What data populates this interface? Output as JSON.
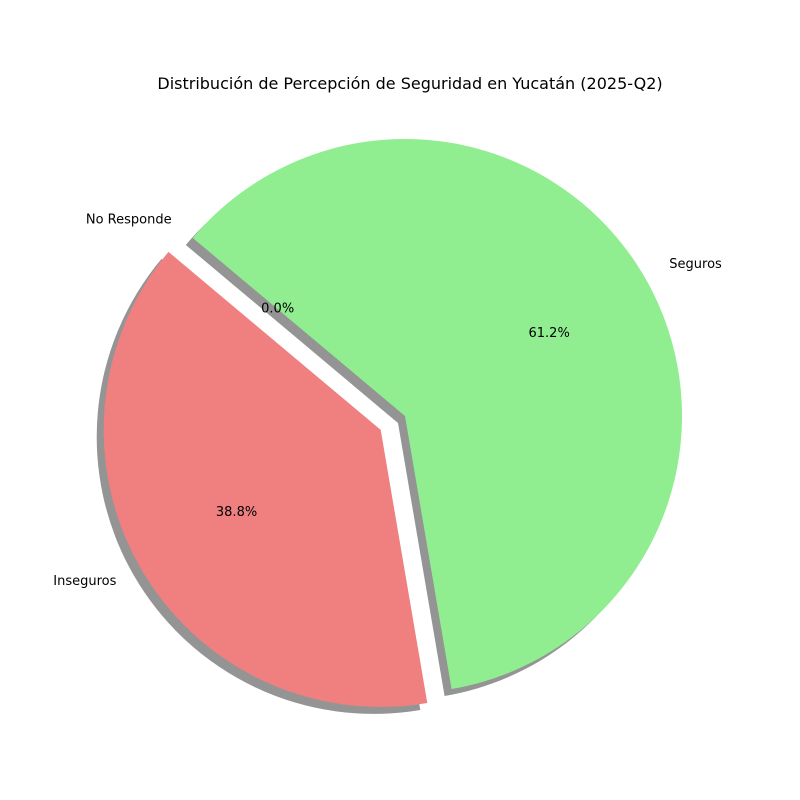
{
  "chart_data": {
    "type": "pie",
    "title": "Distribución de Percepción de Seguridad en Yucatán (2025-Q2)",
    "start_angle_deg": 140,
    "direction": "counterclockwise",
    "shadow": true,
    "slices": [
      {
        "label": "Inseguros",
        "value": 38.8,
        "pct_label": "38.8%",
        "color": "#f08080",
        "exploded": true
      },
      {
        "label": "Seguros",
        "value": 61.2,
        "pct_label": "61.2%",
        "color": "#90ee90",
        "exploded": false
      },
      {
        "label": "No Responde",
        "value": 0.0,
        "pct_label": "0.0%",
        "color": "#add8e6",
        "exploded": false
      }
    ]
  }
}
